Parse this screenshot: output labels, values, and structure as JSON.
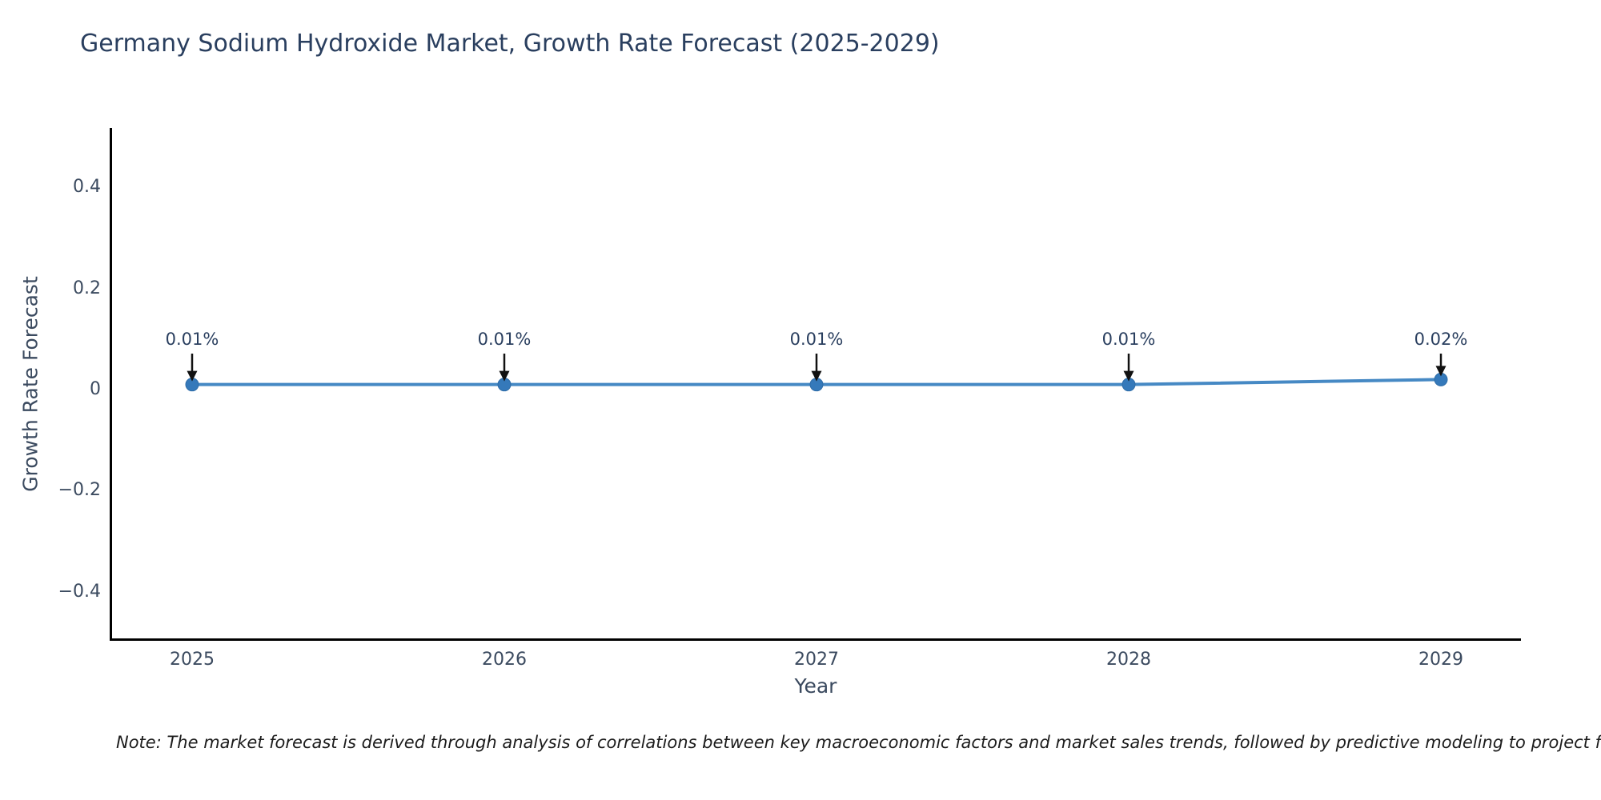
{
  "title": "Germany Sodium Hydroxide Market, Growth Rate Forecast (2025-2029)",
  "note": "Note: The market forecast is derived through analysis of correlations between key macroeconomic factors and market sales trends, followed by predictive modeling to project future sa",
  "chart_data": {
    "type": "line",
    "title": "Germany Sodium Hydroxide Market, Growth Rate Forecast (2025-2029)",
    "xlabel": "Year",
    "ylabel": "Growth Rate Forecast",
    "x": [
      2025,
      2026,
      2027,
      2028,
      2029
    ],
    "series": [
      {
        "name": "Growth Rate Forecast",
        "values": [
          0.01,
          0.01,
          0.01,
          0.01,
          0.02
        ]
      }
    ],
    "point_labels": [
      "0.01%",
      "0.01%",
      "0.01%",
      "0.01%",
      "0.02%"
    ],
    "ytick_values": [
      0.4,
      0.2,
      0,
      -0.2,
      -0.4
    ],
    "ytick_labels": [
      "0.4",
      "0.2",
      "0",
      "−0.2",
      "−0.4"
    ],
    "ylim": [
      -0.5,
      0.52
    ],
    "grid": false,
    "legend": false,
    "annotation_style": "down-arrow",
    "colors": {
      "line": "#4689c4",
      "marker": "#3579ba",
      "marker_edge": "#2f6da8",
      "arrow": "#111111",
      "title_text": "#2a3f5f",
      "axis_text": "#3b4a5f",
      "spine": "#000000"
    }
  }
}
